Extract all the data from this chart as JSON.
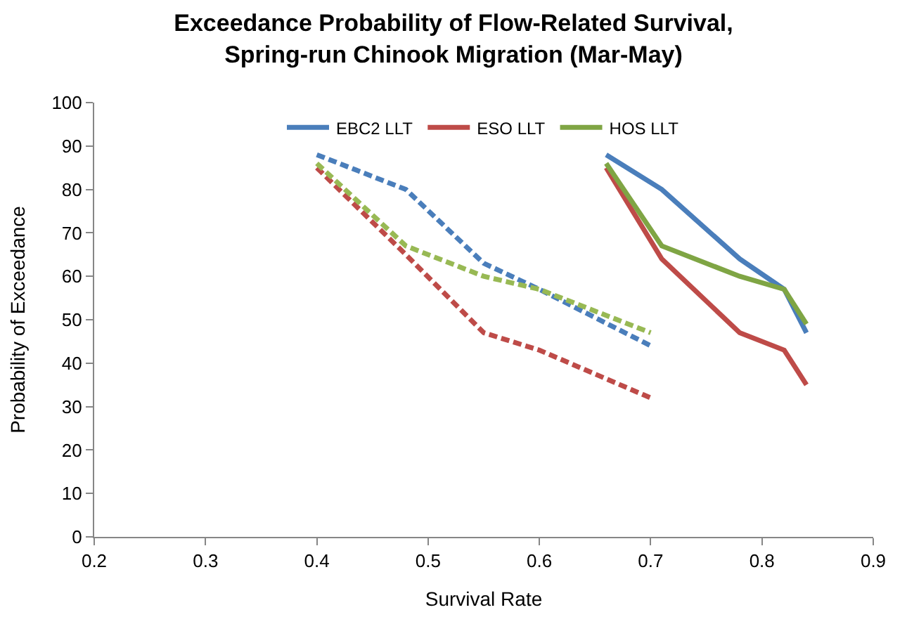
{
  "chart_data": {
    "type": "line",
    "title": "Exceedance Probability of Flow-Related Survival,\nSpring-run Chinook Migration (Mar-May)",
    "xlabel": "Survival Rate",
    "ylabel": "Probability of Exceedance",
    "xlim": [
      0.2,
      0.9
    ],
    "xticks": [
      0.2,
      0.3,
      0.4,
      0.5,
      0.6,
      0.7,
      0.8,
      0.9
    ],
    "ylim": [
      0,
      100
    ],
    "yticks": [
      0,
      10,
      20,
      30,
      40,
      50,
      60,
      70,
      80,
      90,
      100
    ],
    "grid": false,
    "legend": "top",
    "marker": "none",
    "series": [
      {
        "name": "EBC2 LLT",
        "color": "#4a7ebb",
        "line_style": "solid",
        "x": [
          0.66,
          0.71,
          0.78,
          0.82,
          0.84
        ],
        "values": [
          88,
          80,
          64,
          57,
          47
        ]
      },
      {
        "name": "ESO LLT",
        "color": "#be4b48",
        "line_style": "solid",
        "x": [
          0.66,
          0.71,
          0.78,
          0.82,
          0.84
        ],
        "values": [
          85,
          64,
          47,
          43,
          35
        ]
      },
      {
        "name": "HOS LLT",
        "color": "#7fa544",
        "line_style": "solid",
        "x": [
          0.66,
          0.71,
          0.78,
          0.82,
          0.84
        ],
        "values": [
          86,
          67,
          60,
          57,
          49
        ]
      },
      {
        "color": "#4a7ebb",
        "line_style": "dashed",
        "x": [
          0.4,
          0.48,
          0.55,
          0.6,
          0.7
        ],
        "values": [
          88,
          80,
          63,
          57,
          44
        ]
      },
      {
        "color": "#be4b48",
        "line_style": "dashed",
        "x": [
          0.4,
          0.48,
          0.55,
          0.6,
          0.7
        ],
        "values": [
          85,
          65,
          47,
          43,
          32
        ]
      },
      {
        "color": "#98b954",
        "line_style": "dashed",
        "x": [
          0.4,
          0.48,
          0.55,
          0.6,
          0.7
        ],
        "values": [
          86,
          67,
          60,
          57,
          47
        ]
      }
    ]
  }
}
